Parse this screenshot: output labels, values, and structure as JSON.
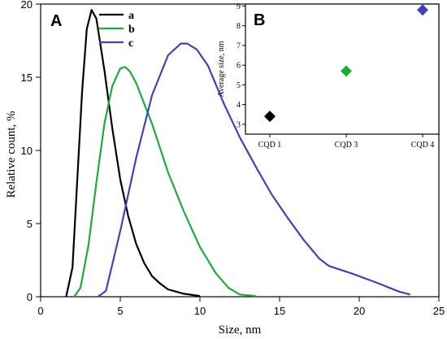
{
  "chart_data": [
    {
      "panel": "A",
      "type": "line",
      "xlabel": "Size, nm",
      "ylabel": "Relative count, %",
      "xlim": [
        0,
        25
      ],
      "ylim": [
        0,
        20
      ],
      "xticks": [
        0,
        5,
        10,
        15,
        20,
        25
      ],
      "yticks": [
        0,
        5,
        10,
        15,
        20
      ],
      "legend_position": "top-center",
      "series": [
        {
          "name": "a",
          "color": "#000000",
          "points": [
            [
              1.6,
              0
            ],
            [
              2.0,
              2.0
            ],
            [
              2.3,
              8.0
            ],
            [
              2.6,
              14.0
            ],
            [
              2.9,
              18.3
            ],
            [
              3.2,
              19.6
            ],
            [
              3.5,
              19.0
            ],
            [
              4.0,
              15.5
            ],
            [
              4.5,
              11.5
            ],
            [
              5.0,
              8.0
            ],
            [
              5.5,
              5.5
            ],
            [
              6.0,
              3.6
            ],
            [
              6.5,
              2.3
            ],
            [
              7.0,
              1.4
            ],
            [
              7.5,
              0.9
            ],
            [
              8.0,
              0.5
            ],
            [
              9.0,
              0.2
            ],
            [
              10.0,
              0.05
            ]
          ]
        },
        {
          "name": "b",
          "color": "#1aad3a",
          "points": [
            [
              2.1,
              0
            ],
            [
              2.5,
              0.6
            ],
            [
              3.0,
              3.5
            ],
            [
              3.5,
              7.8
            ],
            [
              4.0,
              11.8
            ],
            [
              4.5,
              14.4
            ],
            [
              5.0,
              15.6
            ],
            [
              5.3,
              15.7
            ],
            [
              5.6,
              15.4
            ],
            [
              6.0,
              14.6
            ],
            [
              7.0,
              11.8
            ],
            [
              8.0,
              8.5
            ],
            [
              9.0,
              5.8
            ],
            [
              10.0,
              3.4
            ],
            [
              11.0,
              1.6
            ],
            [
              11.8,
              0.6
            ],
            [
              12.5,
              0.15
            ],
            [
              13.5,
              0.05
            ]
          ]
        },
        {
          "name": "c",
          "color": "#3e44b8",
          "points": [
            [
              3.6,
              0
            ],
            [
              4.1,
              0.4
            ],
            [
              5.0,
              4.5
            ],
            [
              6.0,
              9.5
            ],
            [
              7.0,
              13.8
            ],
            [
              8.0,
              16.5
            ],
            [
              8.8,
              17.3
            ],
            [
              9.2,
              17.3
            ],
            [
              9.8,
              16.9
            ],
            [
              10.5,
              15.8
            ],
            [
              11.5,
              13.2
            ],
            [
              12.5,
              10.9
            ],
            [
              13.5,
              8.9
            ],
            [
              14.5,
              7.0
            ],
            [
              15.5,
              5.4
            ],
            [
              16.5,
              3.9
            ],
            [
              17.5,
              2.6
            ],
            [
              18.1,
              2.1
            ],
            [
              19.5,
              1.6
            ],
            [
              21.0,
              1.0
            ],
            [
              22.5,
              0.35
            ],
            [
              23.2,
              0.15
            ]
          ]
        }
      ]
    },
    {
      "panel": "B",
      "type": "scatter",
      "xlabel": "",
      "ylabel": "Average size, nm",
      "categories": [
        "CQD 1",
        "CQD 3",
        "CQD 4"
      ],
      "ylim": [
        2.5,
        9.1
      ],
      "yticks": [
        3,
        4,
        5,
        6,
        7,
        8,
        9
      ],
      "points": [
        {
          "category": "CQD 1",
          "value": 3.4,
          "color": "#000000"
        },
        {
          "category": "CQD 3",
          "value": 5.7,
          "color": "#1aad3a"
        },
        {
          "category": "CQD 4",
          "value": 8.8,
          "color": "#3e44b8"
        }
      ]
    }
  ]
}
